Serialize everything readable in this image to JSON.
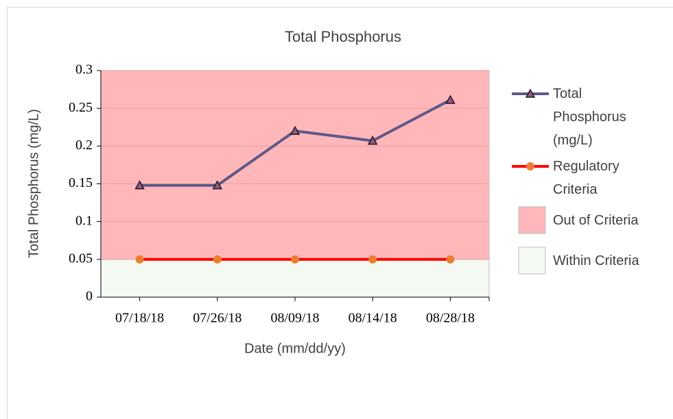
{
  "chart_data": {
    "type": "line",
    "title": "Total Phosphorus",
    "x_label": "Date (mm/dd/yy)",
    "y_label": "Total Phosphorus (mg/L)",
    "categories": [
      "07/18/18",
      "07/26/18",
      "08/09/18",
      "08/14/18",
      "08/28/18"
    ],
    "series": [
      {
        "name": "Total Phosphorus (mg/L)",
        "color": "#5e5889",
        "marker": "triangle",
        "marker_color": "#9a5878",
        "values": [
          0.148,
          0.148,
          0.22,
          0.207,
          0.261
        ]
      },
      {
        "name": "Regulatory Criteria",
        "color": "#ff0000",
        "marker": "circle",
        "marker_color": "#ed7d31",
        "values": [
          0.05,
          0.05,
          0.05,
          0.05,
          0.05
        ]
      }
    ],
    "bands": [
      {
        "name": "Out of Criteria",
        "color": "#ffb7b9",
        "range": [
          0.05,
          0.3
        ]
      },
      {
        "name": "Within Criteria",
        "color": "#f4f9f1",
        "range": [
          0,
          0.05
        ]
      }
    ],
    "ylim": [
      0,
      0.3
    ],
    "yticks": [
      0,
      0.05,
      0.1,
      0.15,
      0.2,
      0.25,
      0.3
    ],
    "grid": true,
    "legend": "right"
  }
}
